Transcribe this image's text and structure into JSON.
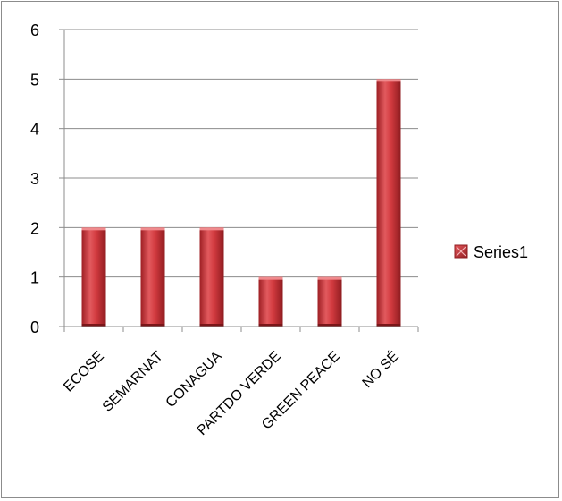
{
  "chart_data": {
    "type": "bar",
    "categories": [
      "ECOSE",
      "SEMARNAT",
      "CONAGUA",
      "PARTDO VERDE",
      "GREEN PEACE",
      "NO SÉ"
    ],
    "series": [
      {
        "name": "Series1",
        "values": [
          2,
          2,
          2,
          1,
          1,
          5
        ]
      }
    ],
    "ylim": [
      0,
      6
    ],
    "yticks": [
      0,
      1,
      2,
      3,
      4,
      5,
      6
    ],
    "title": "",
    "xlabel": "",
    "ylabel": "",
    "grid": true,
    "legend_position": "right",
    "colors": {
      "bar_main": "#c0272d",
      "bar_light": "#e8595d",
      "bar_dark": "#8f1c20",
      "grid": "#8c8c8c",
      "axis": "#8c8c8c"
    }
  }
}
